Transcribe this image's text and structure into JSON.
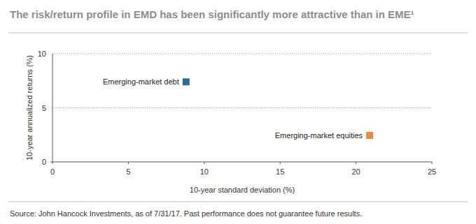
{
  "chart_data": {
    "type": "scatter",
    "title": "The risk/return profile in EMD has been significantly more attractive than in EME¹",
    "x_label": "10-year standard deviation (%)",
    "y_label": "10-year annualized returns (%)",
    "source": "Source: John Hancock Investments, as of 7/31/17. Past performance does not guarantee future results.",
    "series": [
      {
        "name": "Emerging-market debt",
        "color": "#2a6f97",
        "marker": "square",
        "x": [
          8.8
        ],
        "values": [
          7.4
        ]
      },
      {
        "name": "Emerging-market equities",
        "color": "#f08a3c",
        "marker": "square",
        "x": [
          20.9
        ],
        "values": [
          2.45
        ]
      }
    ],
    "xlim": [
      0,
      25
    ],
    "xticks": [
      0,
      5,
      10,
      15,
      20,
      25
    ],
    "ylim": [
      0,
      10
    ],
    "yticks": [
      0,
      5,
      10
    ],
    "grid": true
  }
}
